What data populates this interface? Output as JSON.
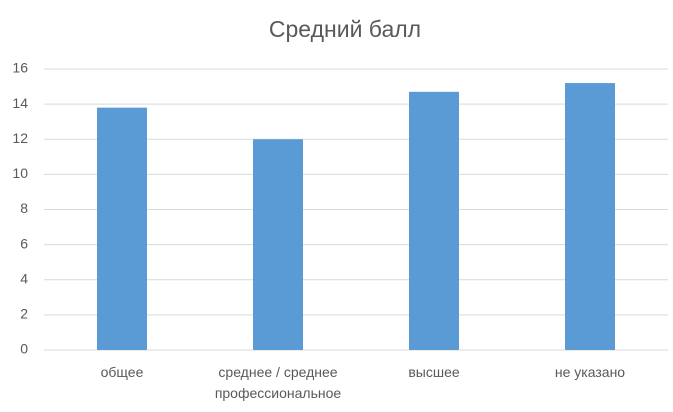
{
  "chart_data": {
    "type": "bar",
    "title": "Средний балл",
    "categories": [
      "общее",
      "среднее / среднее профессиональное",
      "высшее",
      "не указано"
    ],
    "values": [
      13.8,
      12.0,
      14.7,
      15.2
    ],
    "color": "#5b9bd5",
    "ylim": [
      0,
      16
    ],
    "yticks": [
      0,
      2,
      4,
      6,
      8,
      10,
      12,
      14,
      16
    ],
    "grid": true
  }
}
